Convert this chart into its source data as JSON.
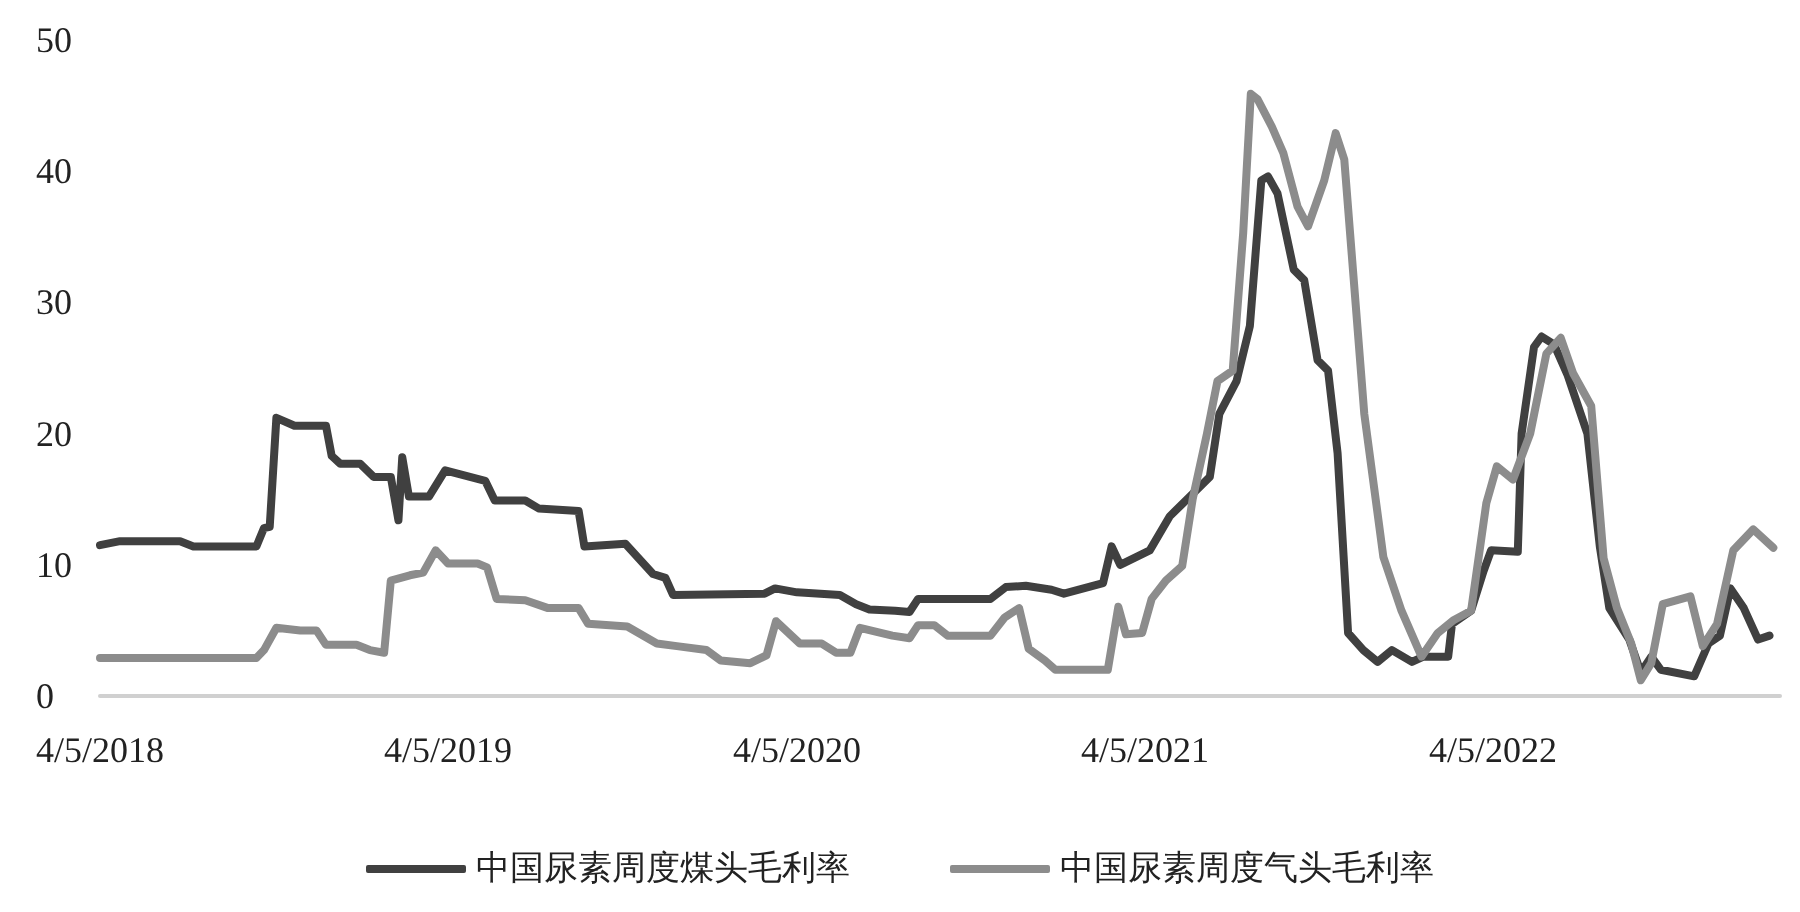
{
  "chart_data": {
    "type": "line",
    "xlim": [
      "2018-04-05",
      "2023-01-31"
    ],
    "ylim": [
      0,
      50
    ],
    "yticks": [
      0,
      10,
      20,
      30,
      40,
      50
    ],
    "xticks": [
      {
        "value": "2018-04-05",
        "label": "4/5/2018"
      },
      {
        "value": "2019-04-05",
        "label": "4/5/2019"
      },
      {
        "value": "2020-04-05",
        "label": "4/5/2020"
      },
      {
        "value": "2021-04-05",
        "label": "4/5/2021"
      },
      {
        "value": "2022-04-05",
        "label": "4/5/2022"
      }
    ],
    "grid": false,
    "legend": "bottom",
    "marker": "none",
    "line_style": "solid",
    "series": [
      {
        "name": "中国尿素周度煤头毛利率",
        "color": "#404040",
        "x": [
          "2018-04-05",
          "2018-04-26",
          "2018-06-28",
          "2018-07-12",
          "2018-09-16",
          "2018-09-24",
          "2018-09-30",
          "2018-10-07",
          "2018-10-26",
          "2018-11-28",
          "2018-12-04",
          "2018-12-13",
          "2019-01-03",
          "2019-01-17",
          "2019-02-04",
          "2019-02-12",
          "2019-02-16",
          "2019-02-23",
          "2019-03-16",
          "2019-04-02",
          "2019-04-23",
          "2019-05-14",
          "2019-05-24",
          "2019-06-25",
          "2019-07-09",
          "2019-08-20",
          "2019-08-26",
          "2019-10-08",
          "2019-11-06",
          "2019-11-19",
          "2019-11-27",
          "2020-03-02",
          "2020-03-13",
          "2020-04-05",
          "2020-05-20",
          "2020-06-06",
          "2020-06-20",
          "2020-07-17",
          "2020-08-01",
          "2020-08-10",
          "2020-10-25",
          "2020-11-10",
          "2020-12-01",
          "2020-12-28",
          "2021-01-10",
          "2021-02-20",
          "2021-03-01",
          "2021-03-10",
          "2021-04-10",
          "2021-05-01",
          "2021-05-22",
          "2021-06-12",
          "2021-06-22",
          "2021-07-10",
          "2021-07-24",
          "2021-08-05",
          "2021-08-12",
          "2021-08-22",
          "2021-09-08",
          "2021-09-19",
          "2021-10-03",
          "2021-10-14",
          "2021-10-24",
          "2021-11-04",
          "2021-11-20",
          "2021-12-05",
          "2021-12-20",
          "2022-01-10",
          "2022-01-22",
          "2022-02-17",
          "2022-02-21",
          "2022-03-13",
          "2022-03-26",
          "2022-04-03",
          "2022-05-01",
          "2022-05-05",
          "2022-05-18",
          "2022-05-26",
          "2022-06-08",
          "2022-06-22",
          "2022-07-13",
          "2022-07-26",
          "2022-08-05",
          "2022-08-26",
          "2022-09-07",
          "2022-09-18",
          "2022-09-28",
          "2022-11-02",
          "2022-11-17",
          "2022-11-29",
          "2022-12-10",
          "2022-12-24",
          "2023-01-08",
          "2023-01-20"
        ],
        "values": [
          11.5,
          11.8,
          11.8,
          11.4,
          11.4,
          12.8,
          12.9,
          21.2,
          20.6,
          20.6,
          18.3,
          17.7,
          17.7,
          16.7,
          16.7,
          13.4,
          18.2,
          15.2,
          15.2,
          17.2,
          16.8,
          16.4,
          14.9,
          14.9,
          14.3,
          14.1,
          11.4,
          11.6,
          9.3,
          9.0,
          7.7,
          7.8,
          8.2,
          7.9,
          7.7,
          7.0,
          6.6,
          6.5,
          6.4,
          7.4,
          7.4,
          8.3,
          8.4,
          8.1,
          7.8,
          8.6,
          11.4,
          10.0,
          11.1,
          13.7,
          15.2,
          16.7,
          21.5,
          24.0,
          28.2,
          39.3,
          39.6,
          38.3,
          32.5,
          31.7,
          25.6,
          24.8,
          18.5,
          4.8,
          3.5,
          2.6,
          3.5,
          2.6,
          3.0,
          3.0,
          5.5,
          6.5,
          9.5,
          11.1,
          11.0,
          20.0,
          26.6,
          27.4,
          26.8,
          24.5,
          20.0,
          11.4,
          6.7,
          4.3,
          1.8,
          3.0,
          2.0,
          1.5,
          4.0,
          4.6,
          8.2,
          6.7,
          4.3,
          4.6
        ]
      },
      {
        "name": "中国尿素周度气头毛利率",
        "color": "#8c8c8c",
        "x": [
          "2018-04-05",
          "2018-09-16",
          "2018-09-24",
          "2018-10-07",
          "2018-11-01",
          "2018-11-18",
          "2018-11-28",
          "2018-12-30",
          "2019-01-13",
          "2019-01-28",
          "2019-02-04",
          "2019-02-24",
          "2019-03-10",
          "2019-03-23",
          "2019-04-05",
          "2019-05-06",
          "2019-05-16",
          "2019-05-26",
          "2019-06-25",
          "2019-07-19",
          "2019-08-20",
          "2019-08-30",
          "2019-10-10",
          "2019-11-10",
          "2019-12-01",
          "2020-01-01",
          "2020-01-16",
          "2020-02-16",
          "2020-03-04",
          "2020-03-14",
          "2020-04-08",
          "2020-05-01",
          "2020-05-16",
          "2020-05-31",
          "2020-06-10",
          "2020-07-14",
          "2020-08-01",
          "2020-08-10",
          "2020-08-27",
          "2020-09-10",
          "2020-10-25",
          "2020-11-09",
          "2020-11-24",
          "2020-12-04",
          "2020-12-21",
          "2021-01-01",
          "2021-02-25",
          "2021-03-08",
          "2021-03-16",
          "2021-04-02",
          "2021-04-12",
          "2021-04-27",
          "2021-05-14",
          "2021-05-25",
          "2021-06-09",
          "2021-06-20",
          "2021-07-06",
          "2021-07-17",
          "2021-07-25",
          "2021-08-01",
          "2021-08-16",
          "2021-08-28",
          "2021-09-12",
          "2021-09-23",
          "2021-10-10",
          "2021-10-22",
          "2021-10-31",
          "2021-11-21",
          "2021-12-11",
          "2021-12-30",
          "2022-01-20",
          "2022-02-06",
          "2022-02-23",
          "2022-03-13",
          "2022-03-29",
          "2022-04-09",
          "2022-04-26",
          "2022-05-14",
          "2022-05-31",
          "2022-06-15",
          "2022-06-28",
          "2022-07-17",
          "2022-07-30",
          "2022-08-13",
          "2022-08-28",
          "2022-09-07",
          "2022-09-18",
          "2022-09-30",
          "2022-10-29",
          "2022-11-11",
          "2022-11-26",
          "2022-12-13",
          "2023-01-03",
          "2023-01-24"
        ],
        "values": [
          2.9,
          2.9,
          3.5,
          5.2,
          5.0,
          5.0,
          3.9,
          3.9,
          3.5,
          3.3,
          8.8,
          9.2,
          9.4,
          11.1,
          10.1,
          10.1,
          9.8,
          7.4,
          7.3,
          6.7,
          6.7,
          5.5,
          5.3,
          4.0,
          3.8,
          3.5,
          2.7,
          2.5,
          3.1,
          5.7,
          4.0,
          4.0,
          3.3,
          3.3,
          5.2,
          4.6,
          4.4,
          5.4,
          5.4,
          4.6,
          4.6,
          6.0,
          6.7,
          3.6,
          2.7,
          2.0,
          2.0,
          6.8,
          4.7,
          4.8,
          7.4,
          8.8,
          9.9,
          15.0,
          20.0,
          24.0,
          24.8,
          35.3,
          45.9,
          45.5,
          43.4,
          41.4,
          37.3,
          35.8,
          39.3,
          42.9,
          40.9,
          21.5,
          10.6,
          6.5,
          3.0,
          4.8,
          5.8,
          6.5,
          14.7,
          17.5,
          16.5,
          20.0,
          26.1,
          27.3,
          24.6,
          22.1,
          10.5,
          6.7,
          4.0,
          1.2,
          2.5,
          7.0,
          7.6,
          3.8,
          5.5,
          11.1,
          12.7,
          11.3
        ]
      }
    ]
  }
}
